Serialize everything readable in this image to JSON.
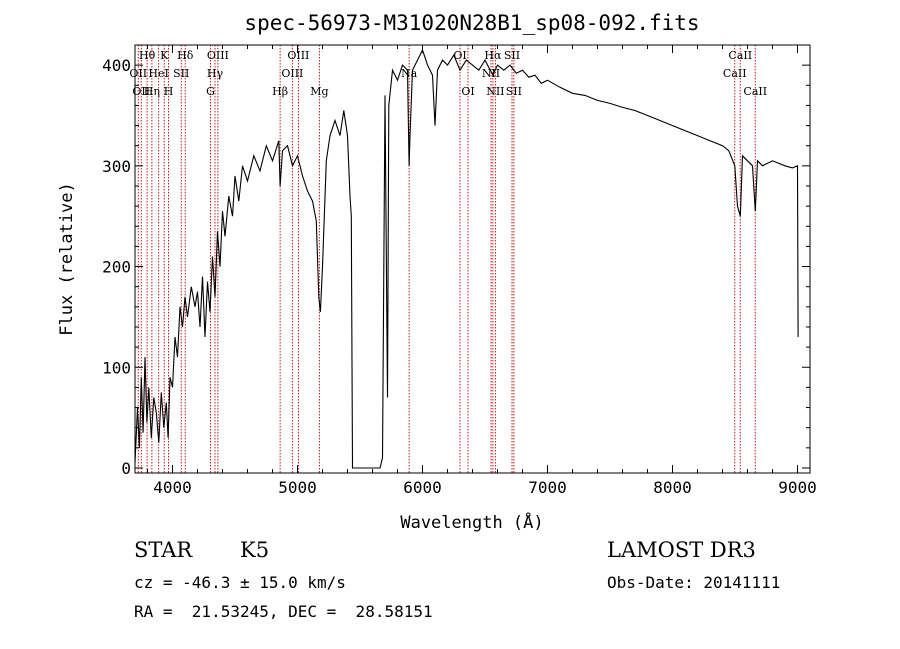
{
  "chart_data": {
    "type": "line",
    "title": "spec-56973-M31020N28B1_sp08-092.fits",
    "xlabel": "Wavelength (Å)",
    "ylabel": "Flux (relative)",
    "xlim": [
      3700,
      9100
    ],
    "ylim": [
      -5,
      420
    ],
    "xticks": [
      4000,
      5000,
      6000,
      7000,
      8000,
      9000
    ],
    "yticks": [
      0,
      100,
      200,
      300,
      400
    ],
    "series": [
      {
        "name": "flux",
        "points": [
          [
            3700,
            5
          ],
          [
            3720,
            60
          ],
          [
            3735,
            20
          ],
          [
            3750,
            90
          ],
          [
            3765,
            35
          ],
          [
            3780,
            110
          ],
          [
            3795,
            45
          ],
          [
            3810,
            80
          ],
          [
            3830,
            30
          ],
          [
            3850,
            70
          ],
          [
            3870,
            55
          ],
          [
            3890,
            25
          ],
          [
            3910,
            75
          ],
          [
            3930,
            40
          ],
          [
            3950,
            65
          ],
          [
            3965,
            30
          ],
          [
            3980,
            90
          ],
          [
            4000,
            80
          ],
          [
            4020,
            130
          ],
          [
            4040,
            110
          ],
          [
            4060,
            160
          ],
          [
            4080,
            140
          ],
          [
            4100,
            170
          ],
          [
            4120,
            150
          ],
          [
            4150,
            180
          ],
          [
            4180,
            160
          ],
          [
            4200,
            175
          ],
          [
            4220,
            140
          ],
          [
            4240,
            190
          ],
          [
            4260,
            130
          ],
          [
            4280,
            185
          ],
          [
            4300,
            155
          ],
          [
            4320,
            210
          ],
          [
            4340,
            170
          ],
          [
            4360,
            235
          ],
          [
            4380,
            200
          ],
          [
            4400,
            255
          ],
          [
            4420,
            230
          ],
          [
            4450,
            270
          ],
          [
            4480,
            250
          ],
          [
            4500,
            290
          ],
          [
            4530,
            265
          ],
          [
            4560,
            300
          ],
          [
            4600,
            285
          ],
          [
            4650,
            310
          ],
          [
            4700,
            295
          ],
          [
            4750,
            320
          ],
          [
            4800,
            305
          ],
          [
            4850,
            325
          ],
          [
            4861,
            280
          ],
          [
            4880,
            315
          ],
          [
            4920,
            320
          ],
          [
            4960,
            300
          ],
          [
            5000,
            310
          ],
          [
            5040,
            290
          ],
          [
            5080,
            275
          ],
          [
            5120,
            265
          ],
          [
            5150,
            245
          ],
          [
            5170,
            170
          ],
          [
            5183,
            155
          ],
          [
            5200,
            200
          ],
          [
            5230,
            305
          ],
          [
            5260,
            330
          ],
          [
            5300,
            345
          ],
          [
            5340,
            330
          ],
          [
            5370,
            355
          ],
          [
            5400,
            330
          ],
          [
            5420,
            270
          ],
          [
            5430,
            250
          ],
          [
            5440,
            0
          ],
          [
            5660,
            0
          ],
          [
            5680,
            10
          ],
          [
            5700,
            370
          ],
          [
            5720,
            70
          ],
          [
            5730,
            360
          ],
          [
            5760,
            395
          ],
          [
            5800,
            385
          ],
          [
            5840,
            400
          ],
          [
            5880,
            395
          ],
          [
            5893,
            300
          ],
          [
            5900,
            330
          ],
          [
            5920,
            395
          ],
          [
            5960,
            405
          ],
          [
            6000,
            415
          ],
          [
            6040,
            400
          ],
          [
            6080,
            390
          ],
          [
            6100,
            340
          ],
          [
            6120,
            395
          ],
          [
            6160,
            405
          ],
          [
            6200,
            400
          ],
          [
            6250,
            410
          ],
          [
            6300,
            395
          ],
          [
            6350,
            405
          ],
          [
            6400,
            400
          ],
          [
            6450,
            395
          ],
          [
            6500,
            405
          ],
          [
            6563,
            390
          ],
          [
            6600,
            400
          ],
          [
            6650,
            395
          ],
          [
            6700,
            400
          ],
          [
            6750,
            392
          ],
          [
            6800,
            395
          ],
          [
            6850,
            388
          ],
          [
            6900,
            390
          ],
          [
            6950,
            382
          ],
          [
            7000,
            385
          ],
          [
            7100,
            378
          ],
          [
            7200,
            372
          ],
          [
            7300,
            370
          ],
          [
            7400,
            365
          ],
          [
            7500,
            362
          ],
          [
            7600,
            358
          ],
          [
            7700,
            355
          ],
          [
            7800,
            350
          ],
          [
            7900,
            345
          ],
          [
            8000,
            340
          ],
          [
            8100,
            335
          ],
          [
            8200,
            330
          ],
          [
            8300,
            325
          ],
          [
            8400,
            320
          ],
          [
            8450,
            315
          ],
          [
            8498,
            300
          ],
          [
            8520,
            260
          ],
          [
            8542,
            250
          ],
          [
            8560,
            310
          ],
          [
            8600,
            305
          ],
          [
            8640,
            300
          ],
          [
            8662,
            255
          ],
          [
            8680,
            305
          ],
          [
            8720,
            300
          ],
          [
            8800,
            305
          ],
          [
            8900,
            300
          ],
          [
            8960,
            298
          ],
          [
            9000,
            300
          ],
          [
            9005,
            130
          ]
        ]
      }
    ],
    "lines": [
      {
        "wave": 3726,
        "label": "OII",
        "row": 1
      },
      {
        "wave": 3750,
        "label": "OII",
        "row": 2
      },
      {
        "wave": 3797,
        "label": "Hθ",
        "row": 0
      },
      {
        "wave": 3835,
        "label": "Hη",
        "row": 2
      },
      {
        "wave": 3889,
        "label": "HeI",
        "row": 1
      },
      {
        "wave": 3934,
        "label": "K",
        "row": 0
      },
      {
        "wave": 3968,
        "label": "H",
        "row": 2
      },
      {
        "wave": 4070,
        "label": "SII",
        "row": 1
      },
      {
        "wave": 4102,
        "label": "Hδ",
        "row": 0
      },
      {
        "wave": 4304,
        "label": "G",
        "row": 2
      },
      {
        "wave": 4340,
        "label": "Hγ",
        "row": 1
      },
      {
        "wave": 4363,
        "label": "OIII",
        "row": 0
      },
      {
        "wave": 4861,
        "label": "Hβ",
        "row": 2
      },
      {
        "wave": 4959,
        "label": "OIII",
        "row": 1
      },
      {
        "wave": 5007,
        "label": "OIII",
        "row": 0
      },
      {
        "wave": 5175,
        "label": "Mg",
        "row": 2
      },
      {
        "wave": 5893,
        "label": "Na",
        "row": 1
      },
      {
        "wave": 6300,
        "label": "OI",
        "row": 0
      },
      {
        "wave": 6364,
        "label": "OI",
        "row": 2
      },
      {
        "wave": 6548,
        "label": "NII",
        "row": 1
      },
      {
        "wave": 6563,
        "label": "Hα",
        "row": 0
      },
      {
        "wave": 6583,
        "label": "NII",
        "row": 2
      },
      {
        "wave": 6716,
        "label": "SII",
        "row": 0
      },
      {
        "wave": 6731,
        "label": "SII",
        "row": 2
      },
      {
        "wave": 8498,
        "label": "CaII",
        "row": 1
      },
      {
        "wave": 8542,
        "label": "CaII",
        "row": 0
      },
      {
        "wave": 8662,
        "label": "CaII",
        "row": 2
      }
    ],
    "grid": false,
    "legend": "none"
  },
  "info": {
    "class": "STAR",
    "subclass": "K5",
    "survey": "LAMOST DR3",
    "cz": "cz = -46.3 ± 15.0 km/s",
    "obs_date": "Obs-Date: 20141111",
    "radec": "RA =  21.53245, DEC =  28.58151"
  }
}
